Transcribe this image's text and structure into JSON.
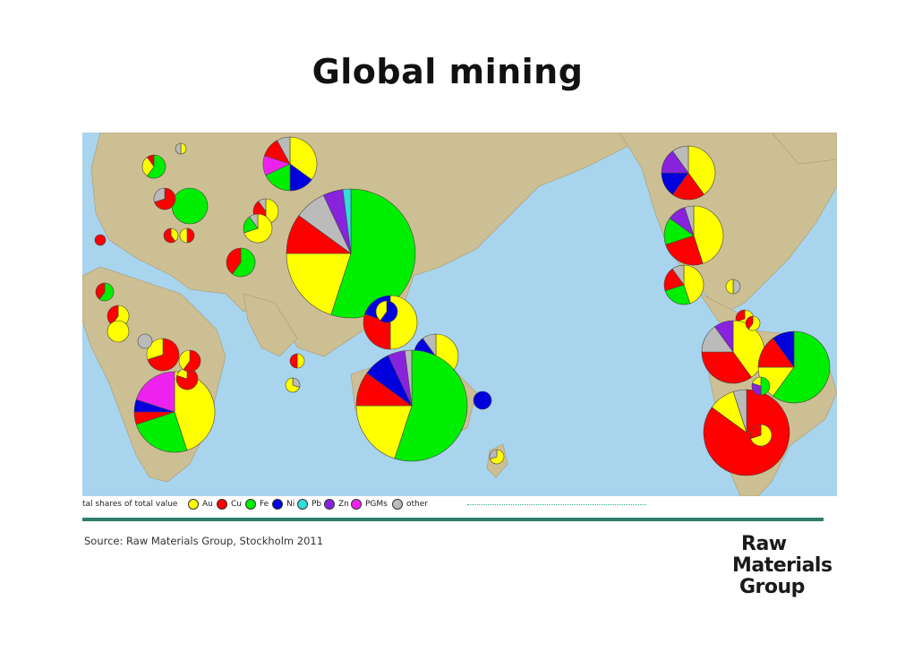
{
  "title": "Global mining",
  "legend": {
    "title": "tal shares of total value",
    "items": [
      {
        "label": "Au",
        "color": "#ffff00"
      },
      {
        "label": "Cu",
        "color": "#ff0000"
      },
      {
        "label": "Fe",
        "color": "#00ee00"
      },
      {
        "label": "Ni",
        "color": "#0000dd"
      },
      {
        "label": "Pb",
        "color": "#33dddd"
      },
      {
        "label": "Zn",
        "color": "#8822dd"
      },
      {
        "label": "PGMs",
        "color": "#ee22ee"
      },
      {
        "label": "other",
        "color": "#bbbbbb"
      }
    ]
  },
  "source": "Source: Raw Materials Group, Stockholm 2011",
  "logo": {
    "line1": "Raw",
    "line2": "Materials",
    "line3": "Group"
  },
  "colors": {
    "ocean": "#a8d4ee",
    "land": "#cdbf94",
    "rule": "#2e7d6a"
  }
}
